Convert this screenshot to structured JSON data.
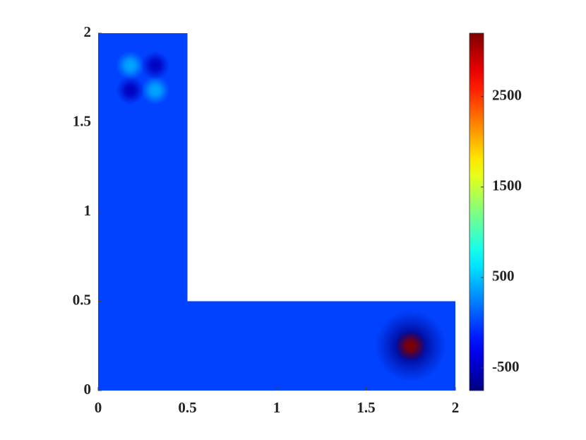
{
  "chart_data": {
    "type": "heatmap",
    "xlim": [
      0,
      2
    ],
    "ylim": [
      0,
      2
    ],
    "xticks": [
      0,
      0.5,
      1,
      1.5,
      2
    ],
    "yticks": [
      0,
      0.5,
      1,
      1.5,
      2
    ],
    "region": [
      [
        0,
        0
      ],
      [
        2,
        0
      ],
      [
        2,
        0.5
      ],
      [
        0.5,
        0.5
      ],
      [
        0.5,
        2
      ],
      [
        0,
        2
      ]
    ],
    "background_value": 0,
    "peaks": [
      {
        "x": 1.75,
        "y": 0.25,
        "value": -700,
        "radius": 0.2
      },
      {
        "x": 1.75,
        "y": 0.25,
        "value": 3200,
        "radius": 0.085
      },
      {
        "x": 0.18,
        "y": 1.82,
        "value": 400,
        "radius": 0.08
      },
      {
        "x": 0.32,
        "y": 1.68,
        "value": 400,
        "radius": 0.08
      },
      {
        "x": 0.32,
        "y": 1.82,
        "value": -500,
        "radius": 0.08
      },
      {
        "x": 0.18,
        "y": 1.68,
        "value": -500,
        "radius": 0.08
      }
    ],
    "colormap": "jet",
    "clim": [
      -750,
      3200
    ],
    "cticks": [
      -500,
      500,
      1500,
      2500
    ]
  }
}
